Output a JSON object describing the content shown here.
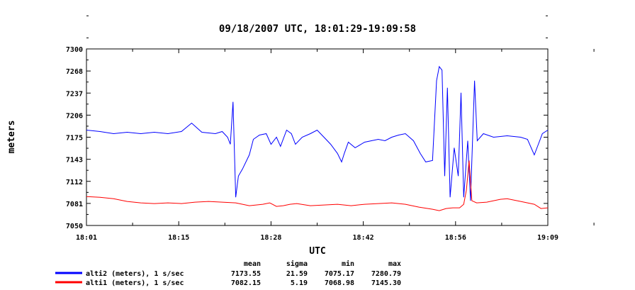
{
  "chart_data": {
    "type": "line",
    "title": "09/18/2007  UTC, 18:01:29-19:09:58",
    "xlabel": "UTC",
    "ylabel": "meters",
    "x_ticks": [
      "18:01",
      "18:15",
      "18:28",
      "18:42",
      "18:56",
      "19:09"
    ],
    "y_ticks": [
      "7050",
      "7081",
      "7112",
      "7143",
      "7175",
      "7206",
      "7237",
      "7268",
      "7300"
    ],
    "xlim_minutes": [
      0,
      68
    ],
    "ylim": [
      7050,
      7300
    ],
    "grid": false,
    "stats_headers": [
      "mean",
      "sigma",
      "min",
      "max"
    ],
    "series": [
      {
        "name": "alti2 (meters), 1 s/sec",
        "color": "#0000ff",
        "stats": [
          "7173.55",
          "21.59",
          "7075.17",
          "7280.79"
        ],
        "points": [
          [
            0,
            7185
          ],
          [
            2,
            7183
          ],
          [
            4,
            7180
          ],
          [
            6,
            7182
          ],
          [
            8,
            7180
          ],
          [
            10,
            7182
          ],
          [
            12,
            7180
          ],
          [
            14,
            7183
          ],
          [
            15.5,
            7195
          ],
          [
            17,
            7182
          ],
          [
            19,
            7180
          ],
          [
            20,
            7183
          ],
          [
            20.8,
            7175
          ],
          [
            21.2,
            7165
          ],
          [
            21.6,
            7225
          ],
          [
            22,
            7090
          ],
          [
            22.4,
            7120
          ],
          [
            23,
            7130
          ],
          [
            24,
            7150
          ],
          [
            24.6,
            7172
          ],
          [
            25.5,
            7178
          ],
          [
            26.5,
            7180
          ],
          [
            27.2,
            7165
          ],
          [
            28,
            7175
          ],
          [
            28.6,
            7162
          ],
          [
            29.5,
            7185
          ],
          [
            30.2,
            7180
          ],
          [
            30.8,
            7165
          ],
          [
            31.8,
            7175
          ],
          [
            33,
            7180
          ],
          [
            34,
            7185
          ],
          [
            35,
            7175
          ],
          [
            36,
            7165
          ],
          [
            37,
            7152
          ],
          [
            37.6,
            7140
          ],
          [
            38,
            7152
          ],
          [
            38.6,
            7168
          ],
          [
            39.6,
            7160
          ],
          [
            41,
            7168
          ],
          [
            42,
            7170
          ],
          [
            43,
            7172
          ],
          [
            44,
            7170
          ],
          [
            45,
            7175
          ],
          [
            46,
            7178
          ],
          [
            47,
            7180
          ],
          [
            48.2,
            7170
          ],
          [
            49.2,
            7152
          ],
          [
            50,
            7140
          ],
          [
            51,
            7142
          ],
          [
            51.6,
            7255
          ],
          [
            52,
            7275
          ],
          [
            52.4,
            7270
          ],
          [
            52.8,
            7120
          ],
          [
            53.2,
            7245
          ],
          [
            53.6,
            7090
          ],
          [
            54.2,
            7160
          ],
          [
            54.8,
            7120
          ],
          [
            55.2,
            7238
          ],
          [
            55.6,
            7090
          ],
          [
            56.2,
            7170
          ],
          [
            56.6,
            7085
          ],
          [
            57.2,
            7255
          ],
          [
            57.6,
            7170
          ],
          [
            58.5,
            7180
          ],
          [
            60,
            7175
          ],
          [
            62,
            7177
          ],
          [
            64,
            7175
          ],
          [
            65,
            7172
          ],
          [
            66,
            7150
          ],
          [
            66.6,
            7165
          ],
          [
            67.2,
            7180
          ],
          [
            68,
            7185
          ]
        ]
      },
      {
        "name": "alti1 (meters), 1 s/sec",
        "color": "#ff0000",
        "stats": [
          "7082.15",
          "5.19",
          "7068.98",
          "7145.30"
        ],
        "points": [
          [
            0,
            7091
          ],
          [
            2,
            7090
          ],
          [
            4,
            7088
          ],
          [
            6,
            7084
          ],
          [
            8,
            7082
          ],
          [
            10,
            7081
          ],
          [
            12,
            7082
          ],
          [
            14,
            7081
          ],
          [
            16,
            7083
          ],
          [
            18,
            7084
          ],
          [
            20,
            7083
          ],
          [
            22,
            7082
          ],
          [
            24,
            7078
          ],
          [
            26,
            7080
          ],
          [
            27,
            7082
          ],
          [
            28,
            7077
          ],
          [
            29,
            7078
          ],
          [
            30,
            7080
          ],
          [
            31,
            7081
          ],
          [
            33,
            7078
          ],
          [
            35,
            7079
          ],
          [
            37,
            7080
          ],
          [
            39,
            7078
          ],
          [
            41,
            7080
          ],
          [
            43,
            7081
          ],
          [
            45,
            7082
          ],
          [
            47,
            7080
          ],
          [
            49,
            7076
          ],
          [
            51,
            7073
          ],
          [
            52,
            7071
          ],
          [
            53,
            7074
          ],
          [
            54,
            7075
          ],
          [
            55,
            7075
          ],
          [
            55.6,
            7080
          ],
          [
            56,
            7100
          ],
          [
            56.4,
            7142
          ],
          [
            56.8,
            7085
          ],
          [
            57.5,
            7082
          ],
          [
            59,
            7083
          ],
          [
            61,
            7087
          ],
          [
            62,
            7088
          ],
          [
            64,
            7084
          ],
          [
            66,
            7080
          ],
          [
            67,
            7074
          ],
          [
            68,
            7075
          ]
        ]
      }
    ]
  }
}
